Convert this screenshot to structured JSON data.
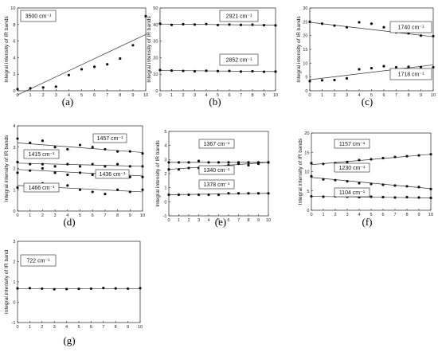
{
  "chart_data": [
    {
      "type": "scatter",
      "caption": "(a)",
      "ylabel": "Integral intensity of IR bands",
      "xlim": [
        0,
        10
      ],
      "ylim": [
        0,
        10
      ],
      "xticks": [
        "0",
        "1",
        "2",
        "3",
        "4",
        "5",
        "6",
        "7",
        "8",
        "9",
        "10"
      ],
      "yticks": [
        "0",
        "2",
        "4",
        "6",
        "8",
        "10"
      ],
      "annotations": [
        {
          "text": "3500 cm⁻¹"
        }
      ],
      "series": [
        {
          "x": [
            0,
            1,
            2,
            3,
            4,
            5,
            6,
            7,
            8,
            9,
            10
          ],
          "values": [
            0.2,
            0.3,
            0.4,
            0.5,
            1.9,
            2.6,
            2.9,
            3.2,
            3.9,
            5.5,
            9.0
          ],
          "trend": [
            -0.5,
            6.8
          ]
        }
      ]
    },
    {
      "type": "scatter",
      "caption": "(b)",
      "ylabel": "Integral intensity of IR bands",
      "xlim": [
        0,
        10
      ],
      "ylim": [
        0,
        50
      ],
      "xticks": [
        "0",
        "1",
        "2",
        "3",
        "4",
        "5",
        "6",
        "7",
        "8",
        "9",
        "10"
      ],
      "yticks": [
        "0",
        "10",
        "20",
        "30",
        "40",
        "50"
      ],
      "annotations": [
        {
          "text": "2921 cm⁻¹"
        },
        {
          "text": "2852 cm⁻¹"
        }
      ],
      "series": [
        {
          "x": [
            0,
            1,
            2,
            3,
            4,
            5,
            6,
            7,
            8,
            9,
            10
          ],
          "values": [
            40.5,
            39.8,
            40.2,
            40.0,
            40.3,
            39.7,
            40.0,
            39.8,
            39.9,
            39.6,
            39.5
          ],
          "trend": [
            40.3,
            39.6
          ]
        },
        {
          "x": [
            0,
            1,
            2,
            3,
            4,
            5,
            6,
            7,
            8,
            9,
            10
          ],
          "values": [
            12.5,
            12.2,
            12.0,
            11.8,
            12.1,
            11.9,
            12.0,
            11.6,
            11.8,
            11.5,
            11.6
          ],
          "trend": [
            12.3,
            11.6
          ]
        }
      ]
    },
    {
      "type": "scatter",
      "caption": "(c)",
      "ylabel": "Integral intensity of IR bands",
      "xlim": [
        0,
        10
      ],
      "ylim": [
        0,
        30
      ],
      "xticks": [
        "0",
        "1",
        "2",
        "3",
        "4",
        "5",
        "6",
        "7",
        "8",
        "9",
        "10"
      ],
      "yticks": [
        "0",
        "5",
        "10",
        "15",
        "20",
        "25",
        "30"
      ],
      "annotations": [
        {
          "text": "1740 cm⁻¹"
        },
        {
          "text": "1718 cm⁻¹"
        }
      ],
      "series": [
        {
          "x": [
            0,
            1,
            2,
            3,
            4,
            5,
            6,
            7,
            8,
            9,
            10
          ],
          "values": [
            25.0,
            24.3,
            23.6,
            23.0,
            24.8,
            24.3,
            23.0,
            21.2,
            20.8,
            20.0,
            19.8
          ],
          "trend": [
            24.8,
            19.6
          ]
        },
        {
          "x": [
            0,
            1,
            2,
            3,
            4,
            5,
            6,
            7,
            8,
            9,
            10
          ],
          "values": [
            3.5,
            3.8,
            3.9,
            4.5,
            7.8,
            8.2,
            8.9,
            8.5,
            8.7,
            8.6,
            8.5
          ],
          "trend": [
            4.0,
            9.4
          ]
        }
      ]
    },
    {
      "type": "scatter",
      "caption": "(d)",
      "ylabel": "Integral intensity of IR bands",
      "xlim": [
        0,
        10
      ],
      "ylim": [
        0,
        4
      ],
      "xticks": [
        "0",
        "1",
        "2",
        "3",
        "4",
        "5",
        "6",
        "7",
        "8",
        "9",
        "10"
      ],
      "yticks": [
        "0",
        "1",
        "2",
        "3",
        "4"
      ],
      "annotations": [
        {
          "text": "1457 cm⁻¹"
        },
        {
          "text": "1415 cm⁻¹"
        },
        {
          "text": "1436 cm⁻¹"
        },
        {
          "text": "1466 cm⁻¹"
        }
      ],
      "series": [
        {
          "x": [
            0,
            1,
            2,
            3,
            4,
            5,
            6,
            7,
            8,
            9,
            10
          ],
          "values": [
            3.4,
            3.2,
            3.3,
            3.0,
            2.9,
            3.1,
            3.0,
            2.9,
            2.8,
            2.8,
            2.7
          ],
          "trend": [
            3.2,
            2.75
          ]
        },
        {
          "x": [
            0,
            1,
            2,
            3,
            4,
            5,
            6,
            7,
            8,
            9,
            10
          ],
          "values": [
            2.3,
            2.2,
            2.2,
            2.1,
            2.2,
            2.1,
            2.2,
            2.1,
            2.2,
            2.1,
            2.1
          ],
          "trend": [
            2.25,
            2.1
          ]
        },
        {
          "x": [
            0,
            1,
            2,
            3,
            4,
            5,
            6,
            7,
            8,
            9,
            10
          ],
          "values": [
            1.8,
            1.9,
            2.0,
            1.8,
            1.7,
            1.8,
            1.7,
            1.8,
            1.7,
            1.6,
            1.6
          ],
          "trend": [
            1.95,
            1.65
          ]
        },
        {
          "x": [
            0,
            1,
            2,
            3,
            4,
            5,
            6,
            7,
            8,
            9,
            10
          ],
          "values": [
            1.1,
            1.0,
            1.3,
            1.1,
            1.2,
            1.0,
            0.9,
            0.8,
            1.0,
            0.9,
            1.0
          ],
          "trend": [
            1.2,
            0.9
          ]
        }
      ]
    },
    {
      "type": "scatter",
      "caption": "(e)",
      "ylabel": "Integral intensity of IR bands",
      "xlim": [
        0,
        10
      ],
      "ylim": [
        -1,
        5
      ],
      "xticks": [
        "0",
        "1",
        "2",
        "3",
        "4",
        "5",
        "6",
        "7",
        "8",
        "9",
        "10"
      ],
      "yticks": [
        "-1",
        "0",
        "1",
        "2",
        "3",
        "4",
        "5"
      ],
      "annotations": [
        {
          "text": "1367 cm⁻¹"
        },
        {
          "text": "1340 cm⁻¹"
        },
        {
          "text": "1378 cm⁻¹"
        }
      ],
      "series": [
        {
          "x": [
            0,
            1,
            2,
            3,
            4,
            5,
            6,
            7,
            8,
            9,
            10
          ],
          "values": [
            2.8,
            2.8,
            2.8,
            2.9,
            2.8,
            2.8,
            2.8,
            2.8,
            2.8,
            2.8,
            2.8
          ],
          "trend": [
            2.8,
            2.8
          ]
        },
        {
          "x": [
            0,
            1,
            2,
            3,
            4,
            5,
            6,
            7,
            8,
            9,
            10
          ],
          "values": [
            2.3,
            2.3,
            2.4,
            2.4,
            2.4,
            2.5,
            2.6,
            2.7,
            2.6,
            2.7,
            2.8
          ],
          "trend": [
            2.3,
            2.8
          ]
        },
        {
          "x": [
            0,
            1,
            2,
            3,
            4,
            5,
            6,
            7,
            8,
            9,
            10
          ],
          "values": [
            0.5,
            0.5,
            0.5,
            0.5,
            0.5,
            0.5,
            0.6,
            0.6,
            0.6,
            0.6,
            0.6
          ],
          "trend": [
            0.5,
            0.6
          ]
        }
      ]
    },
    {
      "type": "scatter",
      "caption": "(f)",
      "ylabel": "Integral intensity of IR bands",
      "xlim": [
        0,
        10
      ],
      "ylim": [
        0,
        20
      ],
      "xticks": [
        "0",
        "1",
        "2",
        "3",
        "4",
        "5",
        "6",
        "7",
        "8",
        "9",
        "10"
      ],
      "yticks": [
        "0",
        "5",
        "10",
        "15",
        "20"
      ],
      "annotations": [
        {
          "text": "1157 cm⁻¹"
        },
        {
          "text": "1230 cm⁻¹"
        },
        {
          "text": "1104 cm⁻¹"
        }
      ],
      "series": [
        {
          "x": [
            0,
            1,
            2,
            3,
            4,
            5,
            6,
            7,
            8,
            9,
            10
          ],
          "values": [
            12.2,
            12.0,
            12.2,
            12.5,
            13.0,
            13.2,
            13.5,
            13.8,
            14.0,
            14.2,
            14.5
          ],
          "trend": [
            11.8,
            14.5
          ]
        },
        {
          "x": [
            0,
            1,
            2,
            3,
            4,
            5,
            6,
            7,
            8,
            9,
            10
          ],
          "values": [
            8.8,
            8.0,
            7.8,
            7.5,
            7.0,
            6.8,
            6.6,
            6.4,
            6.2,
            6.0,
            5.5
          ],
          "trend": [
            8.5,
            5.6
          ]
        },
        {
          "x": [
            0,
            1,
            2,
            3,
            4,
            5,
            6,
            7,
            8,
            9,
            10
          ],
          "values": [
            3.6,
            3.5,
            3.6,
            3.5,
            3.4,
            3.5,
            3.4,
            3.3,
            3.4,
            3.3,
            3.2
          ],
          "trend": [
            3.6,
            3.2
          ]
        }
      ]
    },
    {
      "type": "scatter",
      "caption": "(g)",
      "ylabel": "Integral intensity of IR band",
      "xlim": [
        0,
        10
      ],
      "ylim": [
        -1,
        3
      ],
      "xticks": [
        "0",
        "1",
        "2",
        "3",
        "4",
        "5",
        "6",
        "7",
        "8",
        "9",
        "10"
      ],
      "yticks": [
        "-1",
        "0",
        "1",
        "2",
        "3"
      ],
      "annotations": [
        {
          "text": "722 cm⁻¹"
        }
      ],
      "series": [
        {
          "x": [
            0,
            1,
            2,
            3,
            4,
            5,
            6,
            7,
            8,
            9,
            10
          ],
          "values": [
            0.68,
            0.69,
            0.67,
            0.64,
            0.65,
            0.66,
            0.67,
            0.7,
            0.68,
            0.67,
            0.69
          ],
          "trend": [
            0.67,
            0.67
          ]
        }
      ]
    }
  ]
}
